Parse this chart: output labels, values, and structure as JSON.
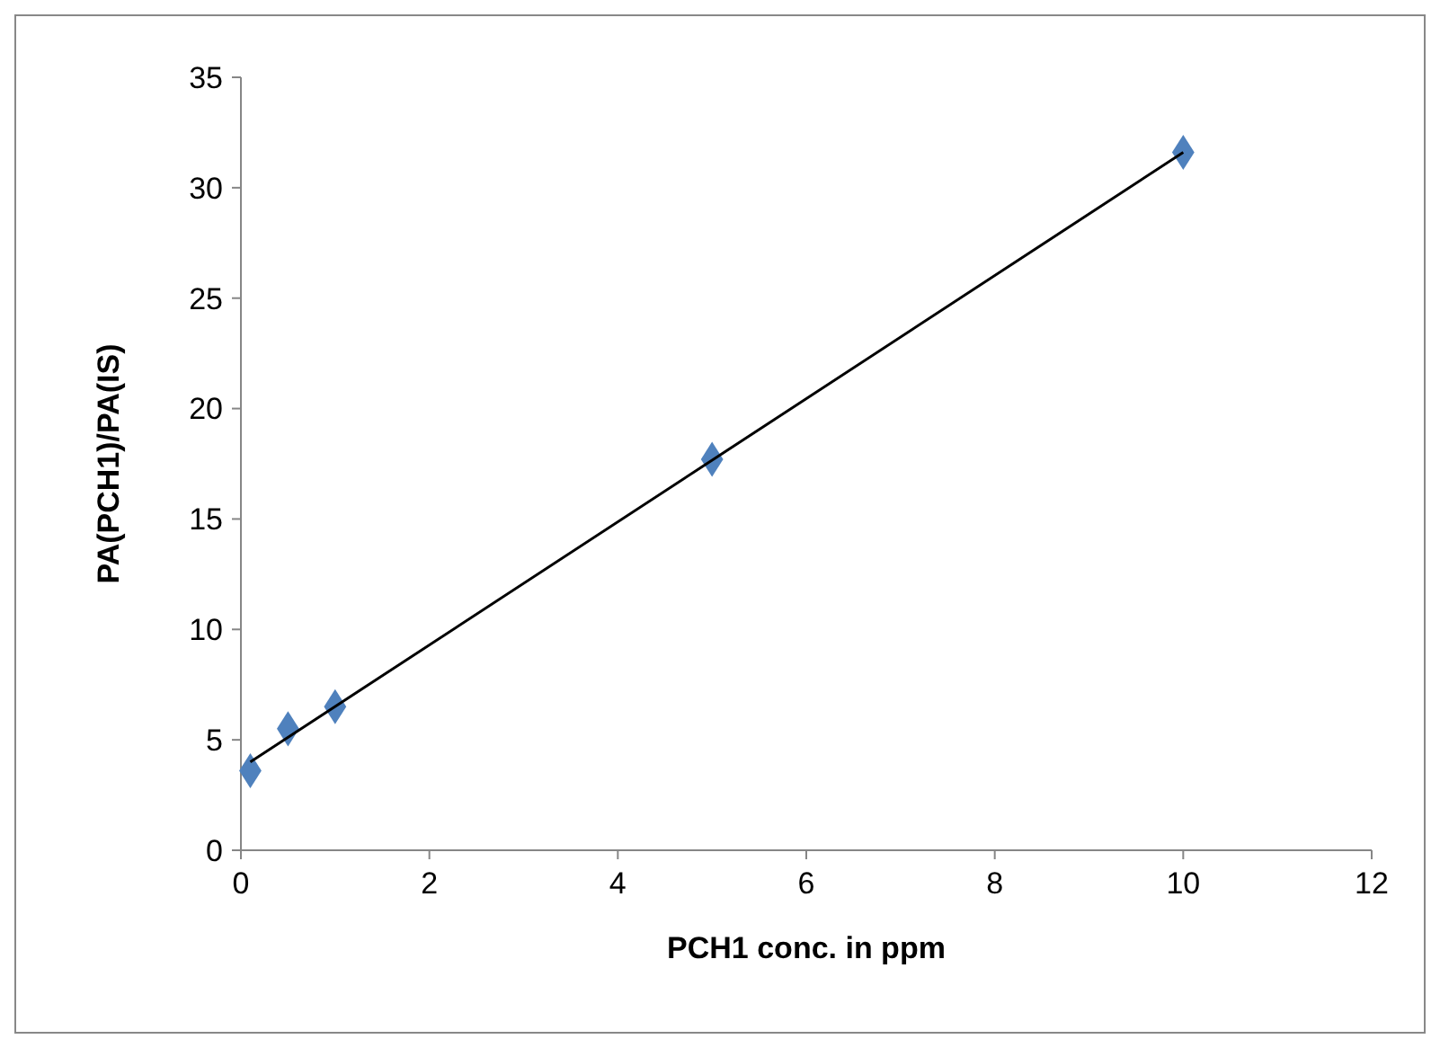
{
  "chart_data": {
    "type": "scatter",
    "xlabel": "PCH1 conc. in ppm",
    "ylabel": "PA(PCH1)/PA(IS)",
    "xlim": [
      0,
      12
    ],
    "xticks": [
      0,
      2,
      4,
      6,
      8,
      10,
      12
    ],
    "ylim": [
      0,
      35
    ],
    "yticks": [
      0,
      5,
      10,
      15,
      20,
      25,
      30,
      35
    ],
    "grid": false,
    "series": [
      {
        "color": "#4f81bd",
        "marker": "diamond",
        "x": [
          0.1,
          0.5,
          1,
          5,
          10
        ],
        "values": [
          3.6,
          5.5,
          6.5,
          17.7,
          31.6
        ]
      },
      {
        "type": "line",
        "color": "#000000",
        "marker": "none",
        "line_style": "solid",
        "x": [
          0.1,
          10
        ],
        "values": [
          4.0,
          31.6
        ]
      }
    ]
  }
}
